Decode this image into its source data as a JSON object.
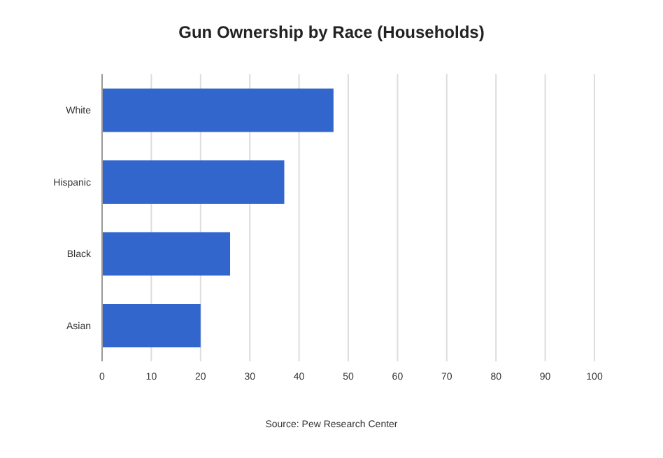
{
  "chart_data": {
    "type": "bar",
    "orientation": "horizontal",
    "title": "Gun Ownership by Race (Households)",
    "categories": [
      "White",
      "Hispanic",
      "Black",
      "Asian"
    ],
    "values": [
      47,
      37,
      26,
      20
    ],
    "color": "#3366cc",
    "xlim": [
      0,
      100
    ],
    "xticks": [
      0,
      10,
      20,
      30,
      40,
      50,
      60,
      70,
      80,
      90,
      100
    ],
    "grid": "x",
    "annotations": [
      "Source: Pew Research Center"
    ]
  }
}
